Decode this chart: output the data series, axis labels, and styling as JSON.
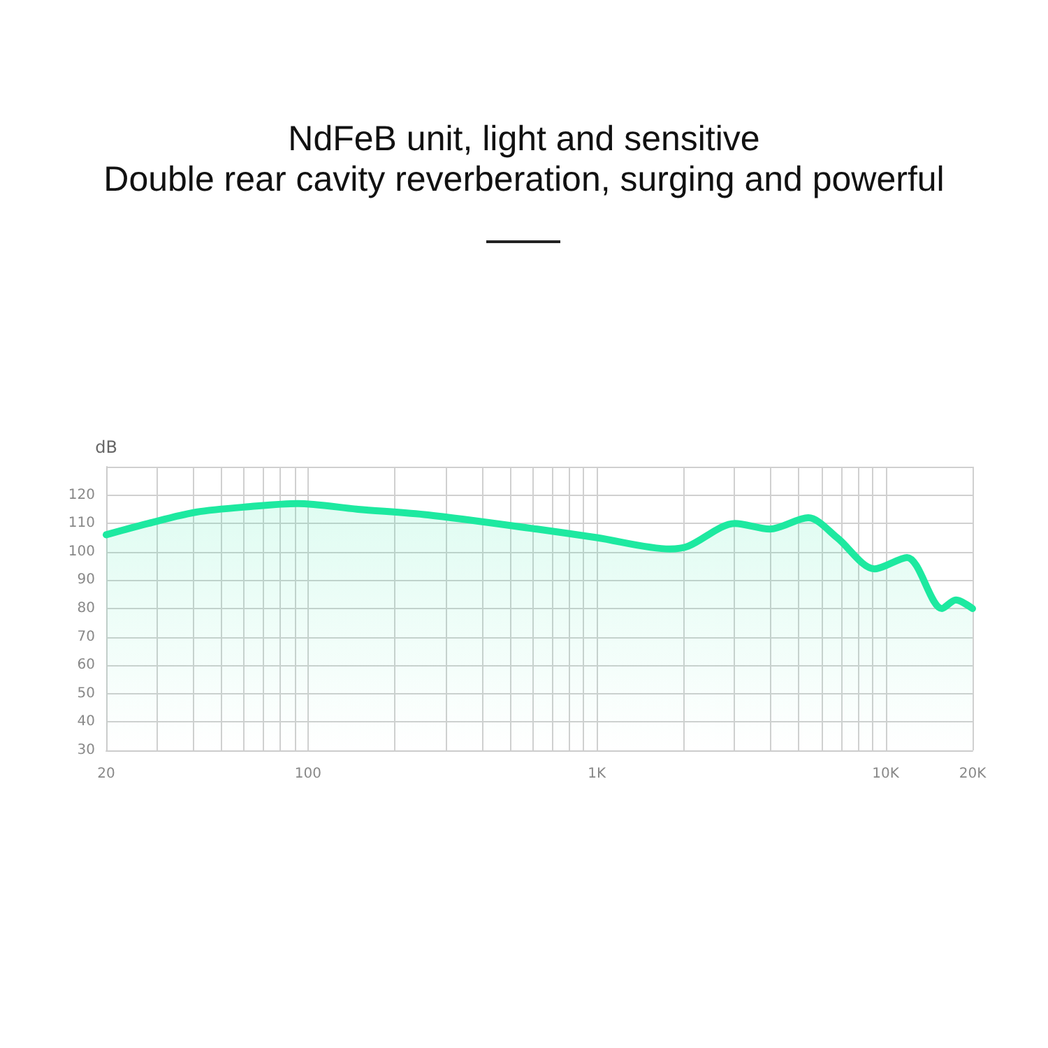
{
  "chart_data": {
    "type": "area",
    "title": "NdFeB unit, light and sensitive",
    "subtitle": "Double rear cavity reverberation, surging and powerful",
    "ylabel": "dB",
    "x": [
      20,
      28,
      41,
      64,
      92,
      149,
      260,
      620,
      1000,
      1790,
      2075,
      3010,
      3970,
      5400,
      6790,
      9150,
      11860,
      15670,
      17500,
      20000
    ],
    "series": [
      {
        "color": "#1de9a0",
        "values": [
          106,
          110,
          114,
          116,
          117,
          115,
          113,
          108,
          105,
          101,
          102,
          110,
          108,
          112,
          105,
          94,
          98,
          80,
          83,
          80
        ]
      }
    ],
    "log": "x",
    "xlim": [
      20,
      20000
    ],
    "xticks": [
      {
        "value": 20,
        "label": "20"
      },
      {
        "value": 30,
        "label": null
      },
      {
        "value": 40,
        "label": null
      },
      {
        "value": 50,
        "label": null
      },
      {
        "value": 60,
        "label": null
      },
      {
        "value": 70,
        "label": null
      },
      {
        "value": 80,
        "label": null
      },
      {
        "value": 90,
        "label": null
      },
      {
        "value": 100,
        "label": "100"
      },
      {
        "value": 200,
        "label": null
      },
      {
        "value": 300,
        "label": null
      },
      {
        "value": 400,
        "label": null
      },
      {
        "value": 500,
        "label": null
      },
      {
        "value": 600,
        "label": null
      },
      {
        "value": 700,
        "label": null
      },
      {
        "value": 800,
        "label": null
      },
      {
        "value": 900,
        "label": null
      },
      {
        "value": 1000,
        "label": "1K"
      },
      {
        "value": 2000,
        "label": null
      },
      {
        "value": 3000,
        "label": null
      },
      {
        "value": 4000,
        "label": null
      },
      {
        "value": 5000,
        "label": null
      },
      {
        "value": 6000,
        "label": null
      },
      {
        "value": 7000,
        "label": null
      },
      {
        "value": 8000,
        "label": null
      },
      {
        "value": 9000,
        "label": null
      },
      {
        "value": 10000,
        "label": "10K"
      },
      {
        "value": 20000,
        "label": "20K"
      }
    ],
    "ylim": [
      30,
      130
    ],
    "yticks": [
      30,
      40,
      50,
      60,
      70,
      80,
      90,
      100,
      110,
      120,
      {
        "value": 130,
        "label": null
      }
    ],
    "grid": true,
    "marker": "none",
    "line_style": "solid"
  }
}
